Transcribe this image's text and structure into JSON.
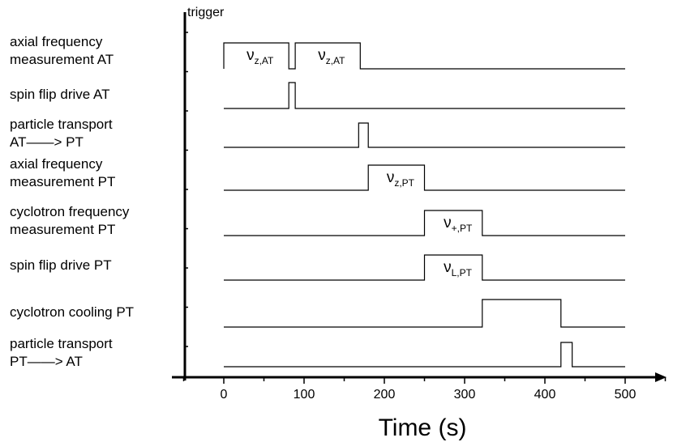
{
  "chart_data": {
    "type": "timing-diagram",
    "xlabel": "Time (s)",
    "ylabel": "trigger",
    "xlim": [
      -50,
      550
    ],
    "xticks": [
      0,
      100,
      200,
      300,
      400,
      500
    ],
    "rows": [
      {
        "label_lines": [
          "axial frequency",
          "measurement AT"
        ],
        "start": 0,
        "end": 500,
        "pulses": [
          {
            "from": 0,
            "to": 81,
            "annotation": {
              "main": "ν",
              "sub": "z,AT"
            }
          },
          {
            "from": 89,
            "to": 170,
            "annotation": {
              "main": "ν",
              "sub": "z,AT"
            }
          }
        ]
      },
      {
        "label_lines": [
          "spin flip drive AT"
        ],
        "start": 0,
        "end": 500,
        "pulses": [
          {
            "from": 81,
            "to": 89
          }
        ]
      },
      {
        "label_lines": [
          "particle transport",
          "AT——> PT"
        ],
        "start": 0,
        "end": 500,
        "pulses": [
          {
            "from": 168,
            "to": 180
          }
        ]
      },
      {
        "label_lines": [
          "axial frequency",
          "measurement PT"
        ],
        "start": 0,
        "end": 500,
        "pulses": [
          {
            "from": 180,
            "to": 250,
            "annotation": {
              "main": "ν",
              "sub": "z,PT"
            }
          }
        ]
      },
      {
        "label_lines": [
          "cyclotron frequency",
          "measurement PT"
        ],
        "start": 0,
        "end": 500,
        "pulses": [
          {
            "from": 250,
            "to": 322,
            "annotation": {
              "main": "ν",
              "sub": "+,PT"
            }
          }
        ]
      },
      {
        "label_lines": [
          "spin flip drive PT"
        ],
        "start": 0,
        "end": 500,
        "pulses": [
          {
            "from": 250,
            "to": 322,
            "annotation": {
              "main": "ν",
              "sub": "L,PT"
            }
          }
        ]
      },
      {
        "label_lines": [
          "cyclotron cooling PT"
        ],
        "start": 0,
        "end": 500,
        "pulses": [
          {
            "from": 322,
            "to": 420
          }
        ]
      },
      {
        "label_lines": [
          "particle transport",
          "PT——> AT"
        ],
        "start": 0,
        "end": 500,
        "pulses": [
          {
            "from": 420,
            "to": 434
          }
        ]
      }
    ]
  }
}
